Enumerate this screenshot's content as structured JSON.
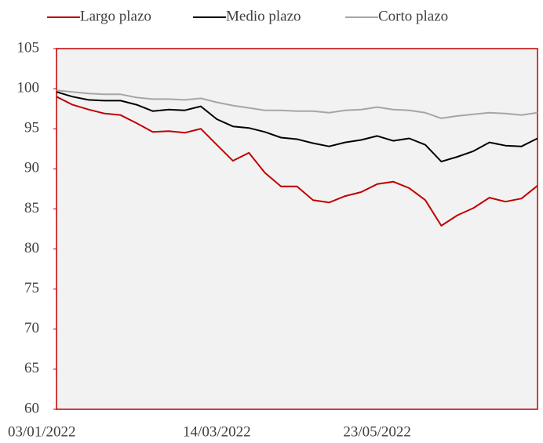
{
  "chart_data": {
    "type": "line",
    "categories": [
      "03/01/2022",
      null,
      null,
      null,
      null,
      null,
      null,
      null,
      null,
      null,
      "14/03/2022",
      null,
      null,
      null,
      null,
      null,
      null,
      null,
      null,
      null,
      "23/05/2022",
      null,
      null,
      null,
      null,
      null,
      null,
      null,
      null,
      null,
      null
    ],
    "series": [
      {
        "name": "Largo plazo",
        "color": "#c00000",
        "values": [
          99.0,
          98.0,
          97.4,
          96.9,
          96.7,
          95.7,
          94.6,
          94.7,
          94.5,
          95.0,
          93.0,
          91.0,
          92.0,
          89.5,
          87.8,
          87.8,
          86.1,
          85.8,
          86.6,
          87.1,
          88.1,
          88.4,
          87.6,
          86.1,
          82.9,
          84.2,
          85.1,
          86.4,
          85.9,
          86.3,
          87.9
        ]
      },
      {
        "name": "Medio plazo",
        "color": "#000000",
        "values": [
          99.6,
          99.0,
          98.6,
          98.5,
          98.5,
          98.0,
          97.2,
          97.4,
          97.3,
          97.8,
          96.2,
          95.3,
          95.1,
          94.6,
          93.9,
          93.7,
          93.2,
          92.8,
          93.3,
          93.6,
          94.1,
          93.5,
          93.8,
          93.0,
          90.9,
          91.5,
          92.2,
          93.3,
          92.9,
          92.8,
          93.8
        ]
      },
      {
        "name": "Corto plazo",
        "color": "#a6a6a6",
        "values": [
          99.8,
          99.6,
          99.4,
          99.3,
          99.3,
          98.9,
          98.7,
          98.7,
          98.6,
          98.8,
          98.3,
          97.9,
          97.6,
          97.3,
          97.3,
          97.2,
          97.2,
          97.0,
          97.3,
          97.4,
          97.7,
          97.4,
          97.3,
          97.0,
          96.3,
          96.6,
          96.8,
          97.0,
          96.9,
          96.7,
          97.0
        ]
      }
    ],
    "ylim": [
      60,
      105
    ],
    "yticks": [
      60,
      65,
      70,
      75,
      80,
      85,
      90,
      95,
      100,
      105
    ],
    "legend": "top"
  }
}
